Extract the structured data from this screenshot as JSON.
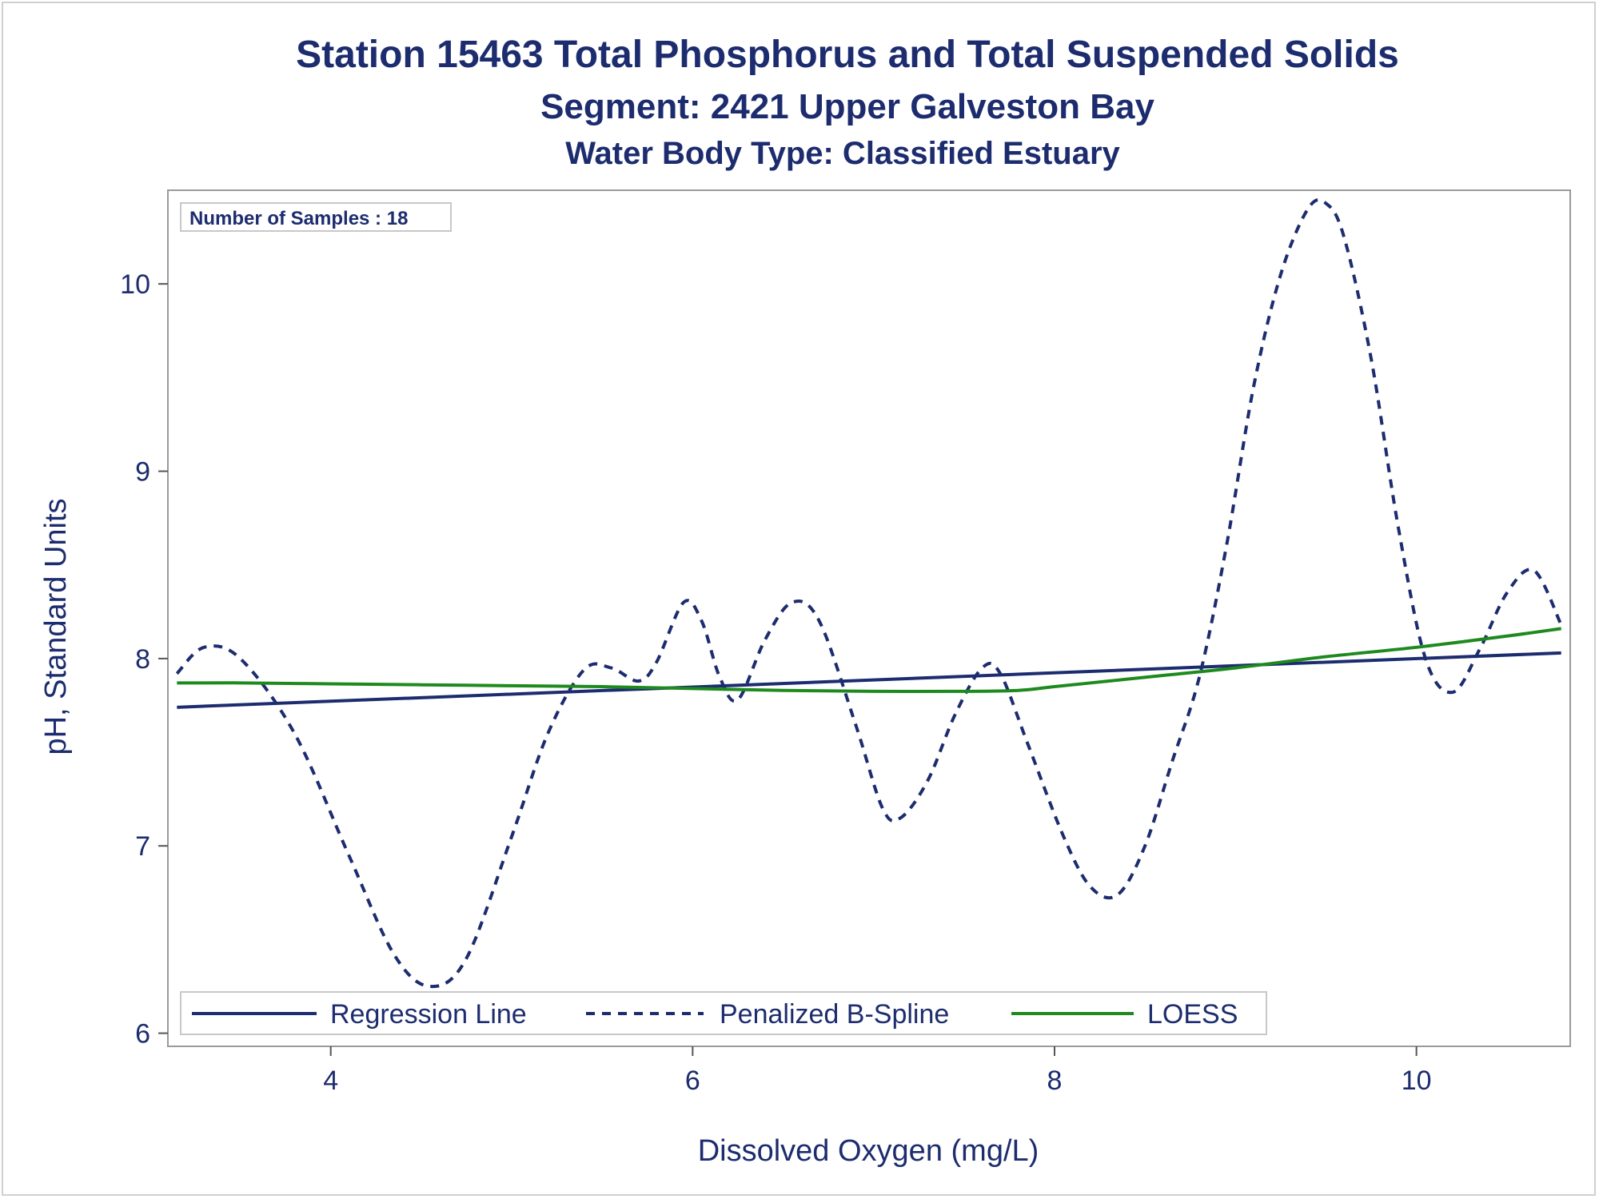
{
  "chart_data": {
    "type": "line",
    "title": "Station 15463  Total Phosphorus and Total Suspended Solids",
    "subtitle": "Segment: 2421  Upper Galveston Bay",
    "subtitle2": "Water Body Type: Classified Estuary",
    "xlabel": "Dissolved Oxygen (mg/L)",
    "ylabel": "pH, Standard Units",
    "xlim": [
      3.1,
      10.85
    ],
    "ylim": [
      5.93,
      10.5
    ],
    "xticks": [
      4,
      6,
      8,
      10
    ],
    "yticks": [
      6,
      7,
      8,
      9,
      10
    ],
    "grid": false,
    "legend_position": "bottom-inside",
    "inset_label": "Number of Samples : 18",
    "series": [
      {
        "name": "Regression Line",
        "style": "solid",
        "color": "#1c2c6e",
        "x": [
          3.15,
          10.8
        ],
        "y": [
          7.74,
          8.03
        ]
      },
      {
        "name": "Penalized B-Spline",
        "style": "dashed",
        "color": "#1c2c6e",
        "x": [
          3.15,
          3.3,
          3.5,
          3.8,
          4.1,
          4.35,
          4.55,
          4.75,
          5.0,
          5.2,
          5.4,
          5.55,
          5.7,
          5.8,
          5.95,
          6.05,
          6.15,
          6.25,
          6.4,
          6.55,
          6.7,
          6.9,
          7.05,
          7.15,
          7.3,
          7.45,
          7.6,
          7.7,
          7.85,
          8.05,
          8.2,
          8.35,
          8.5,
          8.65,
          8.8,
          8.95,
          9.1,
          9.25,
          9.4,
          9.5,
          9.6,
          9.75,
          9.9,
          10.05,
          10.2,
          10.35,
          10.5,
          10.65,
          10.8
        ],
        "y": [
          7.92,
          8.06,
          8.0,
          7.6,
          6.95,
          6.42,
          6.25,
          6.4,
          7.05,
          7.6,
          7.94,
          7.95,
          7.88,
          7.98,
          8.3,
          8.2,
          7.9,
          7.78,
          8.1,
          8.3,
          8.2,
          7.65,
          7.2,
          7.15,
          7.35,
          7.7,
          7.95,
          7.92,
          7.55,
          7.05,
          6.78,
          6.74,
          7.0,
          7.45,
          7.9,
          8.6,
          9.45,
          10.05,
          10.4,
          10.43,
          10.25,
          9.6,
          8.7,
          8.0,
          7.82,
          8.05,
          8.35,
          8.47,
          8.18
        ]
      },
      {
        "name": "LOESS",
        "style": "solid",
        "color": "#1e8a1e",
        "x": [
          3.15,
          3.5,
          4.0,
          4.5,
          5.0,
          5.5,
          6.0,
          6.5,
          7.0,
          7.5,
          7.8,
          8.0,
          8.3,
          8.6,
          9.0,
          9.5,
          10.0,
          10.5,
          10.8
        ],
        "y": [
          7.87,
          7.87,
          7.865,
          7.86,
          7.855,
          7.85,
          7.84,
          7.83,
          7.825,
          7.825,
          7.83,
          7.85,
          7.88,
          7.91,
          7.95,
          8.01,
          8.06,
          8.12,
          8.16
        ]
      }
    ]
  }
}
